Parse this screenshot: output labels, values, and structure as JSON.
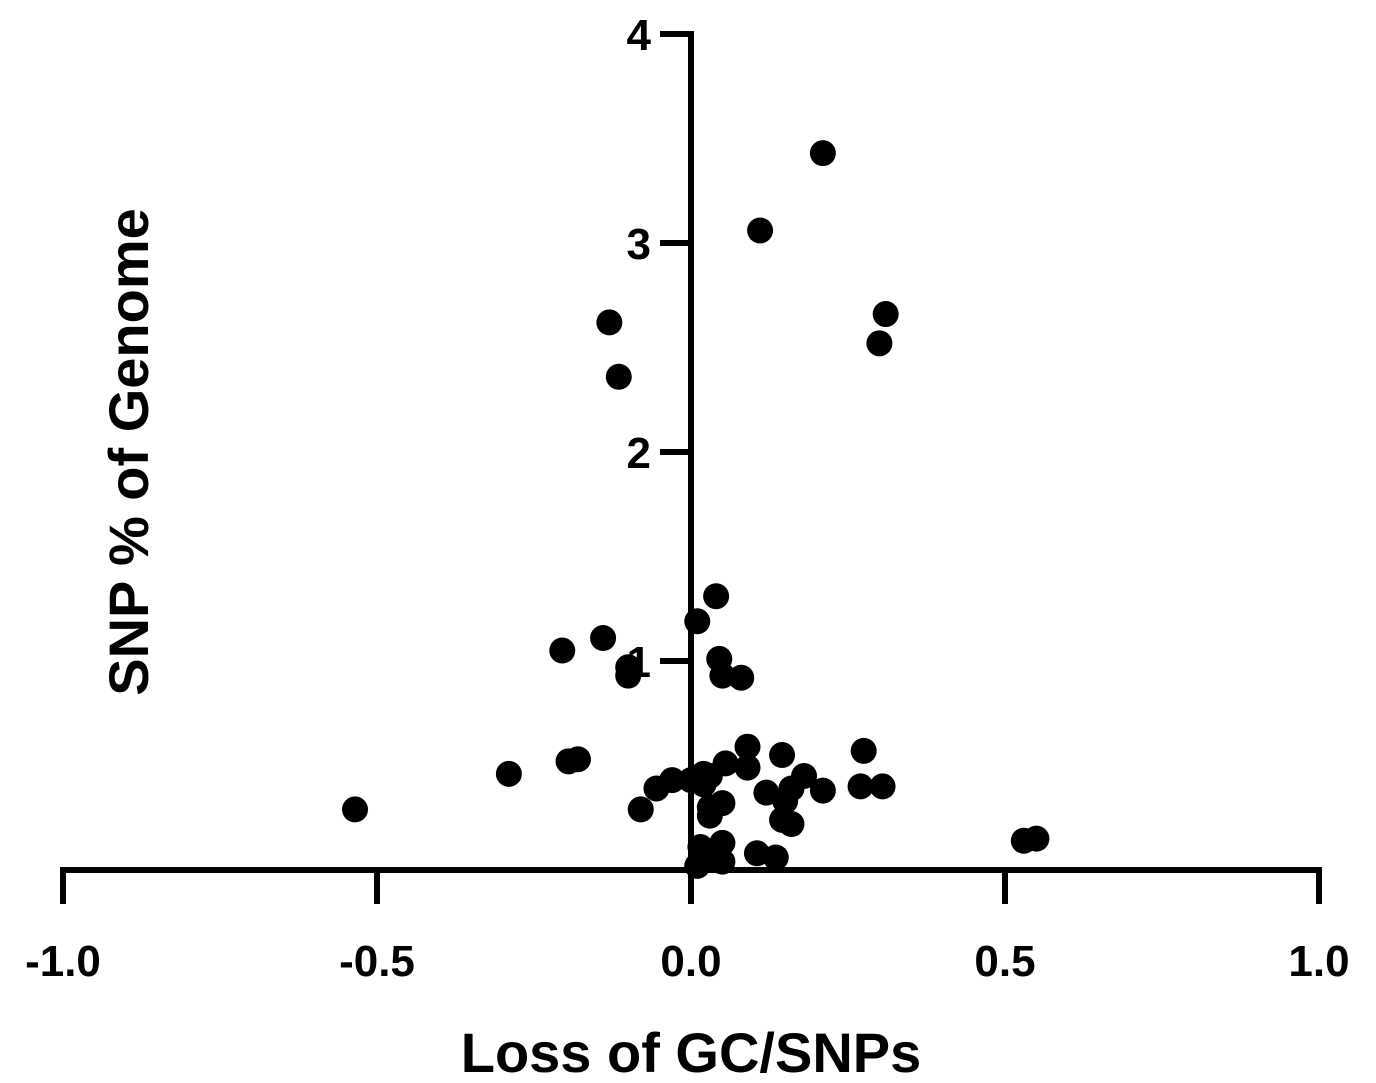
{
  "chart_data": {
    "type": "scatter",
    "title": "",
    "xlabel": "Loss of GC/SNPs",
    "ylabel": "SNP % of Genome",
    "xlim": [
      -1.0,
      1.0
    ],
    "ylim": [
      0,
      4
    ],
    "x_ticks": [
      "-1.0",
      "-0.5",
      "0.0",
      "0.5",
      "1.0"
    ],
    "y_ticks": [
      "1",
      "2",
      "3",
      "4"
    ],
    "grid": false,
    "legend": "none",
    "marker_color": "#000000",
    "points": [
      {
        "x": 0.21,
        "y": 3.43
      },
      {
        "x": 0.11,
        "y": 3.06
      },
      {
        "x": 0.31,
        "y": 2.66
      },
      {
        "x": 0.3,
        "y": 2.52
      },
      {
        "x": -0.13,
        "y": 2.62
      },
      {
        "x": -0.115,
        "y": 2.36
      },
      {
        "x": 0.04,
        "y": 1.31
      },
      {
        "x": 0.01,
        "y": 1.19
      },
      {
        "x": -0.14,
        "y": 1.11
      },
      {
        "x": -0.205,
        "y": 1.05
      },
      {
        "x": 0.045,
        "y": 1.01
      },
      {
        "x": -0.1,
        "y": 0.97
      },
      {
        "x": -0.1,
        "y": 0.93
      },
      {
        "x": 0.05,
        "y": 0.93
      },
      {
        "x": 0.08,
        "y": 0.92
      },
      {
        "x": 0.09,
        "y": 0.59
      },
      {
        "x": 0.145,
        "y": 0.55
      },
      {
        "x": 0.275,
        "y": 0.57
      },
      {
        "x": -0.195,
        "y": 0.52
      },
      {
        "x": -0.18,
        "y": 0.53
      },
      {
        "x": 0.055,
        "y": 0.51
      },
      {
        "x": 0.09,
        "y": 0.49
      },
      {
        "x": 0.02,
        "y": 0.46
      },
      {
        "x": 0.03,
        "y": 0.45
      },
      {
        "x": -0.29,
        "y": 0.46
      },
      {
        "x": 0.18,
        "y": 0.45
      },
      {
        "x": -0.03,
        "y": 0.43
      },
      {
        "x": 0.0,
        "y": 0.43
      },
      {
        "x": 0.02,
        "y": 0.41
      },
      {
        "x": -0.055,
        "y": 0.39
      },
      {
        "x": 0.16,
        "y": 0.39
      },
      {
        "x": 0.21,
        "y": 0.38
      },
      {
        "x": 0.27,
        "y": 0.4
      },
      {
        "x": 0.305,
        "y": 0.4
      },
      {
        "x": 0.12,
        "y": 0.37
      },
      {
        "x": 0.15,
        "y": 0.33
      },
      {
        "x": 0.05,
        "y": 0.32
      },
      {
        "x": 0.03,
        "y": 0.3
      },
      {
        "x": -0.08,
        "y": 0.29
      },
      {
        "x": -0.535,
        "y": 0.29
      },
      {
        "x": 0.03,
        "y": 0.26
      },
      {
        "x": 0.145,
        "y": 0.24
      },
      {
        "x": 0.16,
        "y": 0.22
      },
      {
        "x": 0.05,
        "y": 0.13
      },
      {
        "x": 0.015,
        "y": 0.11
      },
      {
        "x": 0.105,
        "y": 0.08
      },
      {
        "x": 0.135,
        "y": 0.06
      },
      {
        "x": 0.025,
        "y": 0.06
      },
      {
        "x": 0.05,
        "y": 0.04
      },
      {
        "x": 0.01,
        "y": 0.02
      },
      {
        "x": 0.53,
        "y": 0.14
      },
      {
        "x": 0.55,
        "y": 0.15
      }
    ]
  }
}
